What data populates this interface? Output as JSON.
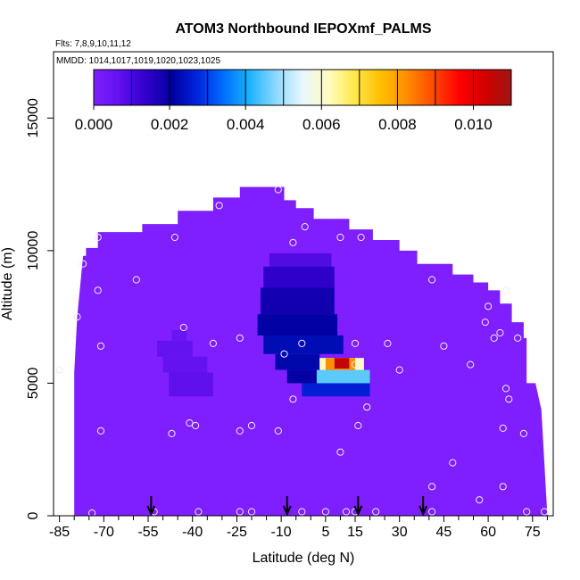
{
  "chart_data": {
    "type": "heatmap",
    "title": "ATOM3 Northbound IEPOXmf_PALMS",
    "flights_note": "Flts: 7,8,9,10,11,12",
    "dates_note": "MMDD: 1014,1017,1019,1020,1023,1025",
    "xlabel": "Latitude (deg N)",
    "ylabel": "Altitude (m)",
    "xlim": [
      -87,
      82
    ],
    "ylim": [
      0,
      17500
    ],
    "x_ticks": [
      -85,
      -70,
      -55,
      -40,
      -25,
      -10,
      5,
      15,
      30,
      45,
      60,
      75
    ],
    "x_minor_ticks": [
      -80,
      -75,
      -65,
      -60,
      -50,
      -45,
      -35,
      -30,
      -20,
      -15,
      -5,
      0,
      10,
      20,
      25,
      35,
      40,
      50,
      55,
      65,
      70,
      80
    ],
    "y_ticks": [
      0,
      5000,
      10000,
      15000
    ],
    "colorbar": {
      "min": 0.0,
      "max": 0.011,
      "ticks": [
        0.0,
        0.002,
        0.004,
        0.006,
        0.008,
        0.01
      ],
      "tick_labels": [
        "0.000",
        "0.002",
        "0.004",
        "0.006",
        "0.008",
        "0.010"
      ],
      "colors": [
        "#7f1fff",
        "#6010ee",
        "#3000cc",
        "#00009f",
        "#0026e0",
        "#0070ff",
        "#1eb4ff",
        "#8fdaff",
        "#e8f8ff",
        "#fffcc0",
        "#ffe84a",
        "#ffbf00",
        "#ff8c00",
        "#ff4a00",
        "#ff0000",
        "#d20000",
        "#a01414"
      ],
      "segment_count": 11
    },
    "background_value": 0.0,
    "envelope": [
      [
        -80,
        0
      ],
      [
        -80,
        5400
      ],
      [
        -79,
        7500
      ],
      [
        -77,
        9800
      ],
      [
        -76,
        9800
      ],
      [
        -76,
        10100
      ],
      [
        -72,
        10100
      ],
      [
        -72,
        10700
      ],
      [
        -57,
        10700
      ],
      [
        -57,
        11000
      ],
      [
        -45,
        11000
      ],
      [
        -45,
        11500
      ],
      [
        -33,
        11500
      ],
      [
        -33,
        12000
      ],
      [
        -24,
        12000
      ],
      [
        -24,
        12400
      ],
      [
        -9,
        12400
      ],
      [
        -9,
        11900
      ],
      [
        -5,
        11900
      ],
      [
        -5,
        11600
      ],
      [
        1,
        11600
      ],
      [
        1,
        11200
      ],
      [
        13,
        11200
      ],
      [
        13,
        10800
      ],
      [
        21,
        10800
      ],
      [
        21,
        10400
      ],
      [
        30,
        10400
      ],
      [
        30,
        10000
      ],
      [
        36,
        10000
      ],
      [
        36,
        9500
      ],
      [
        48,
        9500
      ],
      [
        48,
        9100
      ],
      [
        55,
        9100
      ],
      [
        55,
        8800
      ],
      [
        60,
        8800
      ],
      [
        60,
        8500
      ],
      [
        64,
        8500
      ],
      [
        64,
        8000
      ],
      [
        68,
        8000
      ],
      [
        68,
        7300
      ],
      [
        72,
        7300
      ],
      [
        72,
        6700
      ],
      [
        73,
        6700
      ],
      [
        73,
        5000
      ],
      [
        76,
        5000
      ],
      [
        78,
        4000
      ],
      [
        80,
        0
      ]
    ],
    "patches": [
      {
        "x": [
          -47,
          -42
        ],
        "y": [
          6600,
          7000
        ],
        "value": 0.0005
      },
      {
        "x": [
          -52,
          -40
        ],
        "y": [
          6000,
          6600
        ],
        "value": 0.0006
      },
      {
        "x": [
          -50,
          -35
        ],
        "y": [
          5400,
          6000
        ],
        "value": 0.0006
      },
      {
        "x": [
          -48,
          -33
        ],
        "y": [
          4500,
          5400
        ],
        "value": 0.0007
      },
      {
        "x": [
          -14,
          7
        ],
        "y": [
          9400,
          9900
        ],
        "value": 0.0009
      },
      {
        "x": [
          -16,
          8
        ],
        "y": [
          8600,
          9400
        ],
        "value": 0.0014
      },
      {
        "x": [
          -17,
          8
        ],
        "y": [
          7600,
          8600
        ],
        "value": 0.0018
      },
      {
        "x": [
          -18,
          9
        ],
        "y": [
          6800,
          7600
        ],
        "value": 0.0021
      },
      {
        "x": [
          -16,
          11
        ],
        "y": [
          6100,
          6800
        ],
        "value": 0.0023
      },
      {
        "x": [
          -12,
          3
        ],
        "y": [
          5500,
          6100
        ],
        "value": 0.0022
      },
      {
        "x": [
          -8,
          3
        ],
        "y": [
          5000,
          5500
        ],
        "value": 0.002
      },
      {
        "x": [
          -3,
          20
        ],
        "y": [
          4500,
          5000
        ],
        "value": 0.0026
      },
      {
        "x": [
          2,
          20
        ],
        "y": [
          5000,
          5500
        ],
        "value": 0.0045
      },
      {
        "x": [
          3,
          18
        ],
        "y": [
          5500,
          5950
        ],
        "value": 0.0062
      },
      {
        "x": [
          5,
          15
        ],
        "y": [
          5500,
          5950
        ],
        "value": 0.0082
      },
      {
        "x": [
          8,
          13
        ],
        "y": [
          5550,
          5950
        ],
        "value": 0.0105
      }
    ],
    "sample_points": [
      [
        -85,
        5500
      ],
      [
        -79,
        7500
      ],
      [
        -77,
        9500
      ],
      [
        -72,
        10500
      ],
      [
        -72,
        8500
      ],
      [
        -71,
        6400
      ],
      [
        -71,
        3200
      ],
      [
        -74,
        100
      ],
      [
        -59,
        8900
      ],
      [
        -46,
        10500
      ],
      [
        -43,
        7100
      ],
      [
        -41,
        3500
      ],
      [
        -47,
        3100
      ],
      [
        -39,
        3400
      ],
      [
        -33,
        6500
      ],
      [
        -31,
        11700
      ],
      [
        -24,
        6700
      ],
      [
        -24,
        3200
      ],
      [
        -20,
        3400
      ],
      [
        -11,
        3200
      ],
      [
        -6,
        10300
      ],
      [
        -2,
        10900
      ],
      [
        -3,
        6500
      ],
      [
        -9,
        6100
      ],
      [
        -6,
        4400
      ],
      [
        10,
        10500
      ],
      [
        15,
        6500
      ],
      [
        15,
        5700
      ],
      [
        16,
        3400
      ],
      [
        19,
        4100
      ],
      [
        17,
        10500
      ],
      [
        26,
        6500
      ],
      [
        30,
        5500
      ],
      [
        41,
        8900
      ],
      [
        45,
        6400
      ],
      [
        48,
        2000
      ],
      [
        54,
        5700
      ],
      [
        60,
        7900
      ],
      [
        59,
        7300
      ],
      [
        62,
        6700
      ],
      [
        64,
        6900
      ],
      [
        66,
        8500
      ],
      [
        70,
        6700
      ],
      [
        72,
        3100
      ],
      [
        65,
        3300
      ],
      [
        67,
        4400
      ],
      [
        66,
        4800
      ],
      [
        41,
        1100
      ],
      [
        41,
        150
      ],
      [
        57,
        600
      ],
      [
        65,
        1100
      ],
      [
        73,
        150
      ],
      [
        79,
        150
      ],
      [
        -3,
        150
      ],
      [
        -20,
        150
      ],
      [
        -24,
        150
      ],
      [
        -38,
        150
      ],
      [
        -53,
        150
      ],
      [
        10,
        2400
      ],
      [
        12,
        150
      ],
      [
        15,
        150
      ],
      [
        22,
        150
      ],
      [
        5,
        150
      ],
      [
        -11,
        12300
      ]
    ],
    "arrow_markers_lat": [
      -54,
      -8,
      16,
      38
    ]
  }
}
